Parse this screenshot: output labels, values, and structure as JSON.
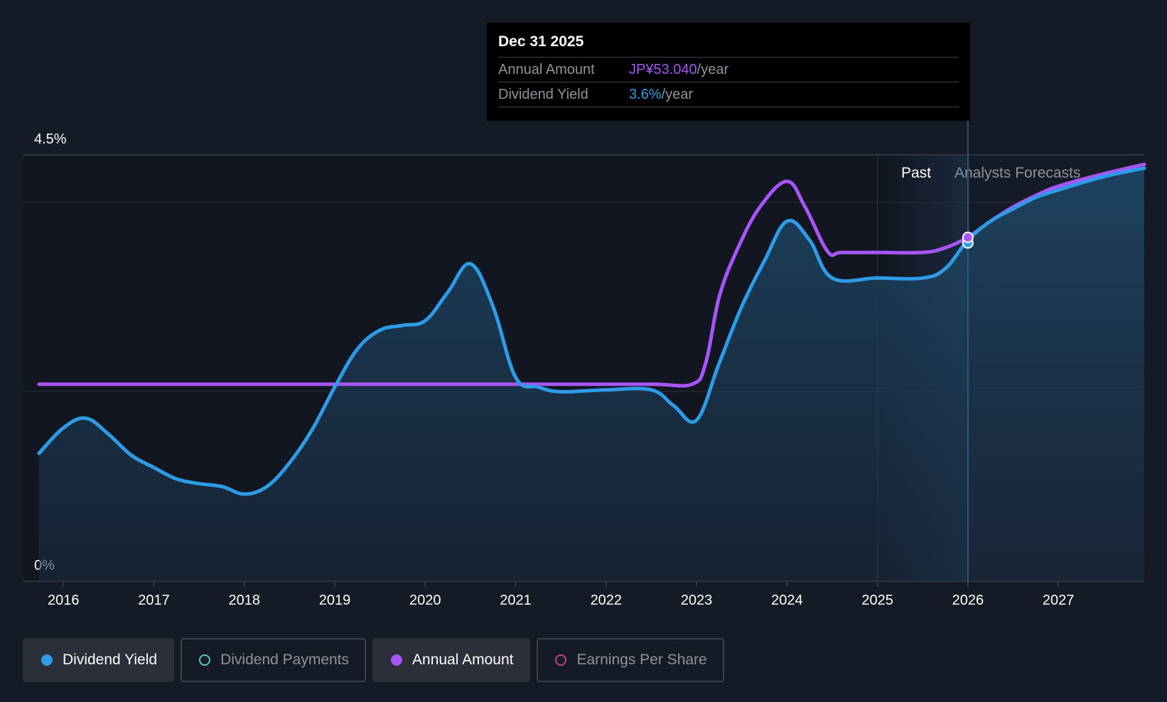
{
  "chart_data": {
    "type": "line",
    "ylim": [
      0,
      4.5
    ],
    "y_tick_labels": [
      "4.5%",
      "0%"
    ],
    "y_ticks": [
      4.5,
      0
    ],
    "x_tick_labels": [
      "2016",
      "2017",
      "2018",
      "2019",
      "2020",
      "2021",
      "2022",
      "2023",
      "2024",
      "2025",
      "2026",
      "2027"
    ],
    "x_ticks": [
      2016,
      2017,
      2018,
      2019,
      2020,
      2021,
      2022,
      2023,
      2024,
      2025,
      2026,
      2027
    ],
    "xlim": [
      2015.55,
      2027.95
    ],
    "past_label": "Past",
    "forecast_label": "Analysts Forecasts",
    "forecast_start": 2026.0,
    "series": [
      {
        "name": "Dividend Yield",
        "color": "#2e9be6",
        "points": [
          [
            2015.73,
            1.35
          ],
          [
            2016.0,
            1.62
          ],
          [
            2016.25,
            1.72
          ],
          [
            2016.5,
            1.55
          ],
          [
            2016.75,
            1.33
          ],
          [
            2017.0,
            1.2
          ],
          [
            2017.25,
            1.08
          ],
          [
            2017.5,
            1.03
          ],
          [
            2017.75,
            1.0
          ],
          [
            2018.0,
            0.92
          ],
          [
            2018.25,
            1.0
          ],
          [
            2018.5,
            1.25
          ],
          [
            2018.75,
            1.6
          ],
          [
            2019.0,
            2.05
          ],
          [
            2019.25,
            2.45
          ],
          [
            2019.5,
            2.65
          ],
          [
            2019.75,
            2.7
          ],
          [
            2020.0,
            2.75
          ],
          [
            2020.25,
            3.05
          ],
          [
            2020.5,
            3.35
          ],
          [
            2020.75,
            2.9
          ],
          [
            2021.0,
            2.15
          ],
          [
            2021.25,
            2.05
          ],
          [
            2021.5,
            2.0
          ],
          [
            2022.0,
            2.02
          ],
          [
            2022.5,
            2.02
          ],
          [
            2022.75,
            1.85
          ],
          [
            2023.0,
            1.7
          ],
          [
            2023.25,
            2.3
          ],
          [
            2023.5,
            2.9
          ],
          [
            2023.75,
            3.38
          ],
          [
            2024.0,
            3.8
          ],
          [
            2024.25,
            3.6
          ],
          [
            2024.5,
            3.2
          ],
          [
            2025.0,
            3.2
          ],
          [
            2025.5,
            3.2
          ],
          [
            2025.75,
            3.3
          ],
          [
            2026.0,
            3.6
          ],
          [
            2026.25,
            3.8
          ],
          [
            2026.5,
            3.93
          ],
          [
            2026.75,
            4.05
          ],
          [
            2027.0,
            4.13
          ],
          [
            2027.5,
            4.27
          ],
          [
            2027.95,
            4.36
          ]
        ]
      },
      {
        "name": "Annual Amount",
        "color": "#a855f7",
        "points": [
          [
            2015.73,
            2.08
          ],
          [
            2016.5,
            2.08
          ],
          [
            2017.5,
            2.08
          ],
          [
            2018.5,
            2.08
          ],
          [
            2019.5,
            2.08
          ],
          [
            2020.5,
            2.08
          ],
          [
            2021.5,
            2.08
          ],
          [
            2022.5,
            2.08
          ],
          [
            2022.95,
            2.08
          ],
          [
            2023.1,
            2.3
          ],
          [
            2023.25,
            3.0
          ],
          [
            2023.45,
            3.5
          ],
          [
            2023.7,
            3.95
          ],
          [
            2024.0,
            4.22
          ],
          [
            2024.2,
            3.95
          ],
          [
            2024.45,
            3.48
          ],
          [
            2024.6,
            3.47
          ],
          [
            2025.0,
            3.47
          ],
          [
            2025.5,
            3.47
          ],
          [
            2025.75,
            3.52
          ],
          [
            2026.0,
            3.63
          ],
          [
            2026.25,
            3.8
          ],
          [
            2026.5,
            3.95
          ],
          [
            2026.75,
            4.07
          ],
          [
            2027.0,
            4.17
          ],
          [
            2027.5,
            4.3
          ],
          [
            2027.95,
            4.4
          ]
        ]
      }
    ],
    "highlight": {
      "x": 2026.0,
      "y": 3.63
    }
  },
  "tooltip": {
    "date": "Dec 31 2025",
    "annual_label": "Annual Amount",
    "annual_value": "JP¥53.040",
    "annual_unit": "/year",
    "yield_label": "Dividend Yield",
    "yield_value": "3.6%",
    "yield_unit": "/year"
  },
  "legend": [
    {
      "label": "Dividend Yield",
      "active": true
    },
    {
      "label": "Dividend Payments",
      "active": false
    },
    {
      "label": "Annual Amount",
      "active": true
    },
    {
      "label": "Earnings Per Share",
      "active": false
    }
  ]
}
